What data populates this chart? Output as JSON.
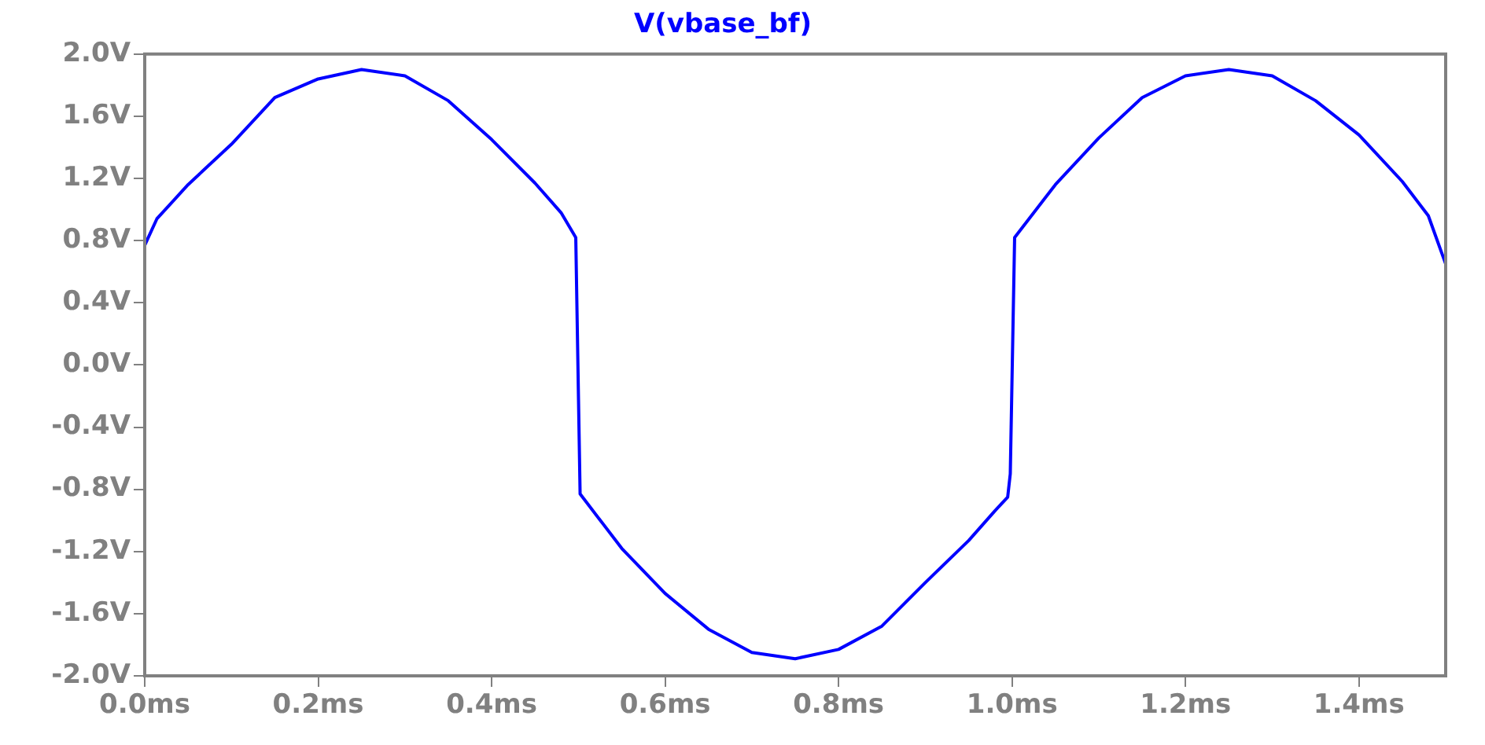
{
  "chart_data": {
    "type": "line",
    "title": "V(vbase_bf)",
    "color": "#0000ff",
    "legend": false,
    "grid": false,
    "x": [
      0,
      0.014,
      0.05,
      0.1,
      0.15,
      0.2,
      0.25,
      0.3,
      0.35,
      0.4,
      0.45,
      0.48,
      0.497,
      0.502,
      0.55,
      0.6,
      0.65,
      0.7,
      0.75,
      0.8,
      0.85,
      0.9,
      0.95,
      0.98,
      0.995,
      0.998,
      1.003,
      1.05,
      1.1,
      1.15,
      1.2,
      1.25,
      1.3,
      1.35,
      1.4,
      1.45,
      1.48,
      1.5
    ],
    "values": [
      0.77,
      0.94,
      1.16,
      1.42,
      1.72,
      1.84,
      1.9,
      1.86,
      1.7,
      1.45,
      1.17,
      0.98,
      0.82,
      -0.83,
      -1.18,
      -1.47,
      -1.7,
      -1.85,
      -1.89,
      -1.83,
      -1.68,
      -1.4,
      -1.13,
      -0.94,
      -0.85,
      -0.7,
      0.82,
      1.16,
      1.46,
      1.72,
      1.86,
      1.9,
      1.86,
      1.7,
      1.48,
      1.18,
      0.96,
      0.65
    ],
    "xlim": [
      0,
      1.5
    ],
    "ylim": [
      -2,
      2
    ],
    "xticks": [
      {
        "value": 0,
        "label": "0.0ms"
      },
      {
        "value": 0.2,
        "label": "0.2ms"
      },
      {
        "value": 0.4,
        "label": "0.4ms"
      },
      {
        "value": 0.6,
        "label": "0.6ms"
      },
      {
        "value": 0.8,
        "label": "0.8ms"
      },
      {
        "value": 1.0,
        "label": "1.0ms"
      },
      {
        "value": 1.2,
        "label": "1.2ms"
      },
      {
        "value": 1.4,
        "label": "1.4ms"
      }
    ],
    "yticks": [
      {
        "value": 2,
        "label": "2.0V"
      },
      {
        "value": 1.6,
        "label": "1.6V"
      },
      {
        "value": 1.2,
        "label": "1.2V"
      },
      {
        "value": 0.8,
        "label": "0.8V"
      },
      {
        "value": 0.4,
        "label": "0.4V"
      },
      {
        "value": 0,
        "label": "0.0V"
      },
      {
        "value": -0.4,
        "label": "-0.4V"
      },
      {
        "value": -0.8,
        "label": "-0.8V"
      },
      {
        "value": -1.2,
        "label": "-1.2V"
      },
      {
        "value": -1.6,
        "label": "-1.6V"
      },
      {
        "value": -2,
        "label": "-2.0V"
      }
    ]
  }
}
